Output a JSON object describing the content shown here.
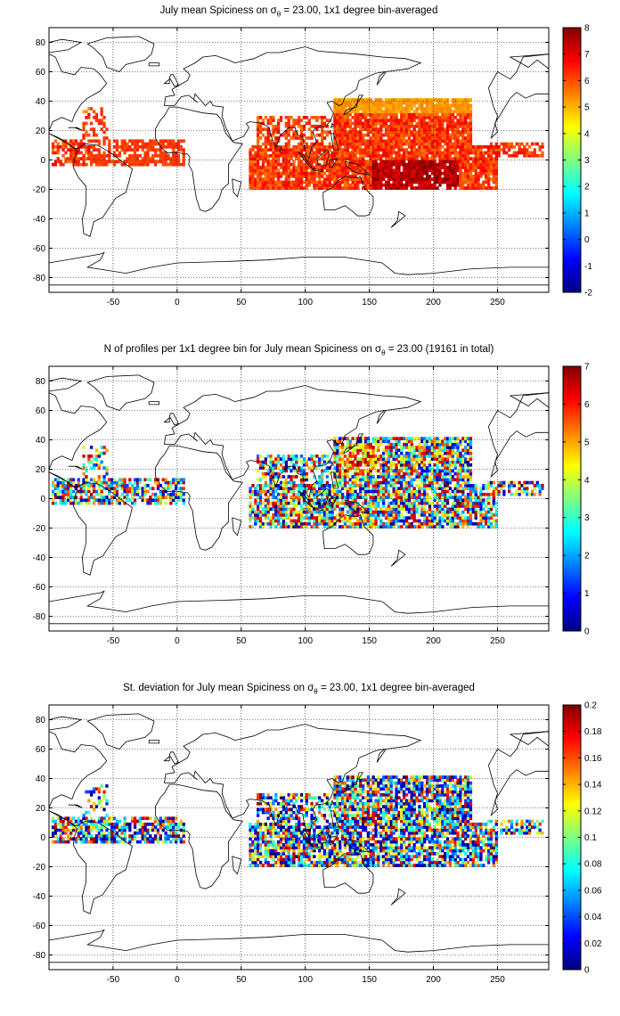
{
  "panels": [
    {
      "title_pre": "July mean Spiciness on ",
      "title_sym": "σ",
      "title_sub": "θ",
      "title_post": " = 23.00, 1x1 degree bin-averaged",
      "colorbar": {
        "min": -2,
        "max": 8,
        "ticks": [
          "8",
          "7",
          "6",
          "5",
          "4",
          "3",
          "2",
          "1",
          "0",
          "-1",
          "-2"
        ]
      },
      "colormap": "jet"
    },
    {
      "title_pre": "N of profiles per 1x1 degree bin for July mean Spiciness on ",
      "title_sym": "σ",
      "title_sub": "θ",
      "title_post": " = 23.00 (19161 in total)",
      "colorbar": {
        "min": 0,
        "max": 7,
        "ticks": [
          "7",
          "6",
          "5",
          "4",
          "3",
          "2",
          "1",
          "0"
        ]
      },
      "colormap": "jet"
    },
    {
      "title_pre": "St. deviation for July mean Spiciness on ",
      "title_sym": "σ",
      "title_sub": "θ",
      "title_post": " = 23.00, 1x1 degree bin-averaged",
      "colorbar": {
        "min": 0,
        "max": 0.2,
        "ticks": [
          "0.2",
          "0.18",
          "0.16",
          "0.14",
          "0.12",
          "0.1",
          "0.08",
          "0.06",
          "0.04",
          "0.02",
          "0"
        ]
      },
      "colormap": "jet"
    }
  ],
  "axes": {
    "x_ticks": [
      "-50",
      "0",
      "50",
      "100",
      "150",
      "200",
      "250"
    ],
    "x_values": [
      -50,
      0,
      50,
      100,
      150,
      200,
      250
    ],
    "y_ticks": [
      "80",
      "60",
      "40",
      "20",
      "0",
      "-20",
      "-40",
      "-60",
      "-80"
    ],
    "y_values": [
      80,
      60,
      40,
      20,
      0,
      -20,
      -40,
      -60,
      -80
    ],
    "xlim": [
      -100,
      290
    ],
    "ylim": [
      -90,
      90
    ],
    "grid": "dotted"
  },
  "chart_data": [
    {
      "type": "heatmap",
      "title": "July mean Spiciness on σθ = 23.00, 1x1 degree bin-averaged",
      "xlim": [
        -100,
        290
      ],
      "ylim": [
        -90,
        90
      ],
      "clim": [
        -2,
        8
      ],
      "grid": true,
      "colorbar": "right"
    },
    {
      "type": "heatmap",
      "title": "N of profiles per 1x1 degree bin for July mean Spiciness on σθ = 23.00 (19161 in total)",
      "xlim": [
        -100,
        290
      ],
      "ylim": [
        -90,
        90
      ],
      "clim": [
        0,
        7
      ],
      "grid": true,
      "colorbar": "right"
    },
    {
      "type": "heatmap",
      "title": "St. deviation for July mean Spiciness on σθ = 23.00, 1x1 degree bin-averaged",
      "xlim": [
        -100,
        290
      ],
      "ylim": [
        -90,
        90
      ],
      "clim": [
        0,
        0.2
      ],
      "grid": true,
      "colorbar": "right"
    }
  ]
}
